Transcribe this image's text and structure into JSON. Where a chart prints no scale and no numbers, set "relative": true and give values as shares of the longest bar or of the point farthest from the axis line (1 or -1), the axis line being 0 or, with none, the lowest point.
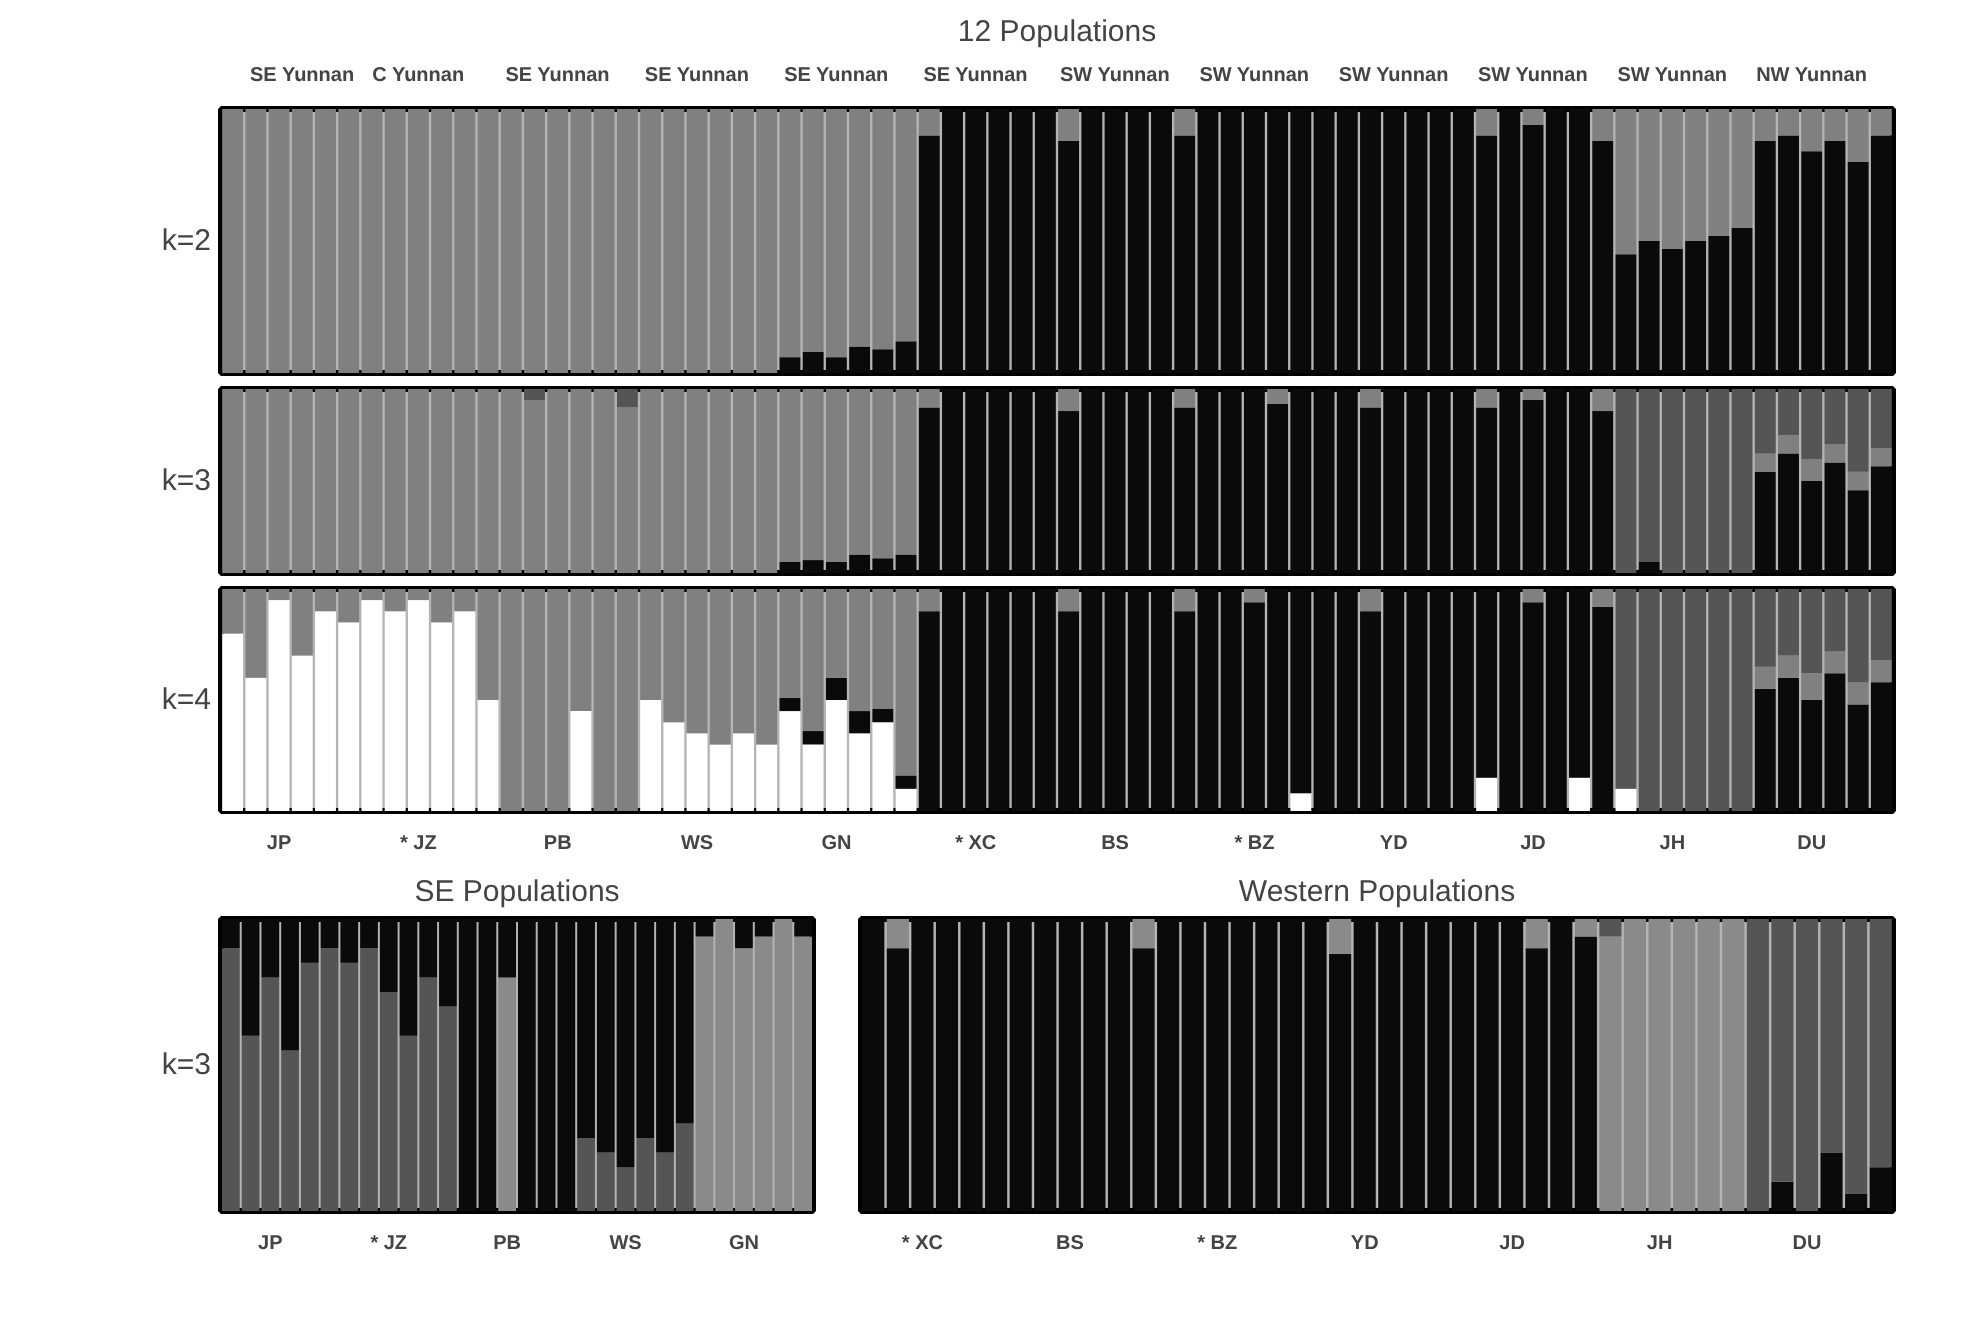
{
  "chart_data": [
    {
      "type": "bar",
      "stacked": true,
      "relative": true,
      "title": "12 Populations",
      "ylabel": "k=2",
      "categories": [
        null,
        null,
        null,
        "SE Yunnan",
        null,
        null,
        null,
        null,
        "C Yunnan",
        null,
        null,
        null,
        null,
        null,
        "SE Yunnan",
        null,
        null,
        null,
        null,
        null,
        "SE Yunnan",
        null,
        null,
        null,
        null,
        null,
        "SE Yunnan",
        null,
        null,
        null,
        null,
        null,
        "SE Yunnan",
        null,
        null,
        null,
        null,
        null,
        "SW Yunnan",
        null,
        null,
        null,
        null,
        null,
        "SW Yunnan",
        null,
        null,
        null,
        null,
        null,
        "SW Yunnan",
        null,
        null,
        null,
        null,
        null,
        "SW Yunnan",
        null,
        null,
        null,
        null,
        null,
        "SW Yunnan",
        null,
        null,
        null,
        null,
        null,
        "NW Yunnan",
        null,
        null,
        null
      ],
      "series": [
        {
          "color": "#0a0a0a",
          "values": [
            0,
            0,
            0,
            0,
            0,
            0,
            0,
            0,
            0,
            0,
            0,
            0,
            0,
            0,
            0,
            0,
            0,
            0,
            0,
            0,
            0,
            0,
            0,
            0,
            0.06,
            0.08,
            0.06,
            0.1,
            0.09,
            0.12,
            0.9,
            1,
            1,
            1,
            1,
            1,
            0.88,
            1,
            1,
            1,
            1,
            0.9,
            1,
            1,
            1,
            1,
            1,
            1,
            1,
            1,
            1,
            1,
            1,
            1,
            0.9,
            1,
            0.94,
            1,
            1,
            0.88,
            0.45,
            0.5,
            0.47,
            0.5,
            0.52,
            0.55,
            0.88,
            0.9,
            0.84,
            0.88,
            0.8,
            0.9
          ]
        },
        {
          "color": "#808080",
          "values": [
            1,
            1,
            1,
            1,
            1,
            1,
            1,
            1,
            1,
            1,
            1,
            1,
            1,
            1,
            1,
            1,
            1,
            1,
            1,
            1,
            1,
            1,
            1,
            1,
            0.94,
            0.92,
            0.94,
            0.9,
            0.91,
            0.88,
            0.1,
            0,
            0,
            0,
            0,
            0,
            0.12,
            0,
            0,
            0,
            0,
            0.1,
            0,
            0,
            0,
            0,
            0,
            0,
            0,
            0,
            0,
            0,
            0,
            0,
            0.1,
            0,
            0.06,
            0,
            0,
            0.12,
            0.55,
            0.5,
            0.53,
            0.5,
            0.48,
            0.45,
            0.12,
            0.1,
            0.16,
            0.12,
            0.2,
            0.1
          ]
        }
      ]
    },
    {
      "type": "bar",
      "stacked": true,
      "relative": true,
      "ylabel": "k=3",
      "categories": [
        null,
        null,
        null,
        null,
        null,
        null,
        null,
        null,
        null,
        null,
        null,
        null,
        null,
        null,
        null,
        null,
        null,
        null,
        null,
        null,
        null,
        null,
        null,
        null,
        null,
        null,
        null,
        null,
        null,
        null,
        null,
        null,
        null,
        null,
        null,
        null,
        null,
        null,
        null,
        null,
        null,
        null,
        null,
        null,
        null,
        null,
        null,
        null,
        null,
        null,
        null,
        null,
        null,
        null,
        null,
        null,
        null,
        null,
        null,
        null,
        null,
        null,
        null,
        null,
        null,
        null,
        null,
        null,
        null,
        null,
        null,
        null
      ],
      "series": [
        {
          "color": "#0a0a0a",
          "values": [
            0,
            0,
            0,
            0,
            0,
            0,
            0,
            0,
            0,
            0,
            0,
            0,
            0,
            0,
            0,
            0,
            0,
            0,
            0,
            0,
            0,
            0,
            0,
            0,
            0.06,
            0.07,
            0.06,
            0.1,
            0.08,
            0.1,
            0.9,
            1,
            1,
            1,
            1,
            1,
            0.88,
            1,
            1,
            1,
            1,
            0.9,
            1,
            1,
            1,
            0.92,
            1,
            1,
            1,
            0.9,
            1,
            1,
            1,
            1,
            0.9,
            1,
            0.94,
            1,
            1,
            0.88,
            0,
            0.06,
            0,
            0,
            0,
            0,
            0.55,
            0.65,
            0.5,
            0.6,
            0.45,
            0.58
          ]
        },
        {
          "color": "#808080",
          "values": [
            1,
            1,
            1,
            1,
            1,
            1,
            1,
            1,
            1,
            1,
            1,
            1,
            1,
            0.94,
            1,
            1,
            1,
            0.9,
            1,
            1,
            1,
            1,
            1,
            1,
            0.94,
            0.93,
            0.94,
            0.9,
            0.92,
            0.9,
            0.1,
            0,
            0,
            0,
            0,
            0,
            0.12,
            0,
            0,
            0,
            0,
            0.1,
            0,
            0,
            0,
            0.08,
            0,
            0,
            0,
            0.1,
            0,
            0,
            0,
            0,
            0.1,
            0,
            0.06,
            0,
            0,
            0.12,
            0,
            0,
            0,
            0,
            0,
            0,
            0.1,
            0.1,
            0.12,
            0.1,
            0.1,
            0.1
          ]
        },
        {
          "color": "#555555",
          "values": [
            0,
            0,
            0,
            0,
            0,
            0,
            0,
            0,
            0,
            0,
            0,
            0,
            0,
            0.06,
            0,
            0,
            0,
            0.1,
            0,
            0,
            0,
            0,
            0,
            0,
            0,
            0,
            0,
            0,
            0,
            0,
            0,
            0,
            0,
            0,
            0,
            0,
            0,
            0,
            0,
            0,
            0,
            0,
            0,
            0,
            0,
            0,
            0,
            0,
            0,
            0,
            0,
            0,
            0,
            0,
            0,
            0,
            0,
            0,
            0,
            0,
            1,
            0.94,
            1,
            1,
            1,
            1,
            0.35,
            0.25,
            0.38,
            0.3,
            0.45,
            0.32
          ]
        }
      ]
    },
    {
      "type": "bar",
      "stacked": true,
      "relative": true,
      "ylabel": "k=4",
      "categories": [
        null,
        null,
        "JP",
        null,
        null,
        null,
        null,
        null,
        "* JZ",
        null,
        null,
        null,
        null,
        null,
        "PB",
        null,
        null,
        null,
        null,
        null,
        "WS",
        null,
        null,
        null,
        null,
        null,
        "GN",
        null,
        null,
        null,
        null,
        null,
        "* XC",
        null,
        null,
        null,
        null,
        null,
        "BS",
        null,
        null,
        null,
        null,
        null,
        "* BZ",
        null,
        null,
        null,
        null,
        null,
        "YD",
        null,
        null,
        null,
        null,
        null,
        "JD",
        null,
        null,
        null,
        null,
        null,
        "JH",
        null,
        null,
        null,
        null,
        null,
        "DU",
        null,
        null,
        null
      ],
      "series": [
        {
          "color": "#ffffff",
          "values": [
            0.8,
            0.6,
            0.95,
            0.7,
            0.9,
            0.85,
            0.95,
            0.9,
            0.95,
            0.85,
            0.9,
            0.5,
            0,
            0,
            0,
            0.45,
            0,
            0,
            0.5,
            0.4,
            0.35,
            0.3,
            0.35,
            0.3,
            0.45,
            0.3,
            0.5,
            0.35,
            0.4,
            0.1,
            0,
            0,
            0,
            0,
            0,
            0,
            0,
            0,
            0,
            0,
            0,
            0,
            0,
            0,
            0,
            0,
            0.08,
            0,
            0,
            0,
            0,
            0,
            0,
            0,
            0.15,
            0,
            0,
            0,
            0.15,
            0,
            0.1,
            0,
            0,
            0,
            0,
            0,
            0,
            0,
            0,
            0,
            0,
            0
          ]
        },
        {
          "color": "#0a0a0a",
          "values": [
            0,
            0,
            0,
            0,
            0,
            0,
            0,
            0,
            0,
            0,
            0,
            0,
            0,
            0,
            0,
            0,
            0,
            0,
            0,
            0,
            0,
            0,
            0,
            0,
            0.06,
            0.06,
            0.1,
            0.1,
            0.06,
            0.06,
            0.9,
            1,
            1,
            1,
            1,
            1,
            0.9,
            1,
            1,
            1,
            1,
            0.9,
            1,
            1,
            0.94,
            1,
            0.92,
            1,
            1,
            0.9,
            1,
            1,
            1,
            1,
            0.85,
            1,
            0.94,
            1,
            0.85,
            0.92,
            0,
            0,
            0,
            0,
            0,
            0,
            0.55,
            0.6,
            0.5,
            0.62,
            0.48,
            0.58
          ]
        },
        {
          "color": "#808080",
          "values": [
            0.2,
            0.4,
            0.05,
            0.3,
            0.1,
            0.15,
            0.05,
            0.1,
            0.05,
            0.15,
            0.1,
            0.5,
            1,
            1,
            1,
            0.55,
            1,
            1,
            0.5,
            0.6,
            0.65,
            0.7,
            0.65,
            0.7,
            0.49,
            0.64,
            0.4,
            0.55,
            0.54,
            0.84,
            0.1,
            0,
            0,
            0,
            0,
            0,
            0.1,
            0,
            0,
            0,
            0,
            0.1,
            0,
            0,
            0.06,
            0,
            0,
            0,
            0,
            0.1,
            0,
            0,
            0,
            0,
            0,
            0,
            0.06,
            0,
            0,
            0.08,
            0,
            0,
            0,
            0,
            0,
            0,
            0.1,
            0.1,
            0.12,
            0.1,
            0.1,
            0.1
          ]
        },
        {
          "color": "#555555",
          "values": [
            0,
            0,
            0,
            0,
            0,
            0,
            0,
            0,
            0,
            0,
            0,
            0,
            0,
            0,
            0,
            0,
            0,
            0,
            0,
            0,
            0,
            0,
            0,
            0,
            0,
            0,
            0,
            0,
            0,
            0,
            0,
            0,
            0,
            0,
            0,
            0,
            0,
            0,
            0,
            0,
            0,
            0,
            0,
            0,
            0,
            0,
            0,
            0,
            0,
            0,
            0,
            0,
            0,
            0,
            0,
            0,
            0,
            0,
            0,
            0,
            0.9,
            1,
            1,
            1,
            1,
            1,
            0.35,
            0.3,
            0.38,
            0.28,
            0.42,
            0.32
          ]
        }
      ]
    },
    {
      "type": "bar",
      "stacked": true,
      "relative": true,
      "title": "SE Populations",
      "ylabel": "k=3",
      "categories": [
        null,
        null,
        "JP",
        null,
        null,
        null,
        null,
        null,
        "* JZ",
        null,
        null,
        null,
        null,
        null,
        "PB",
        null,
        null,
        null,
        null,
        null,
        "WS",
        null,
        null,
        null,
        null,
        null,
        "GN",
        null,
        null,
        null
      ],
      "series": [
        {
          "color": "#555555",
          "values": [
            0.9,
            0.6,
            0.8,
            0.55,
            0.85,
            0.9,
            0.85,
            0.9,
            0.75,
            0.6,
            0.8,
            0.7,
            0,
            0,
            0,
            0,
            0,
            0,
            0.25,
            0.2,
            0.15,
            0.25,
            0.2,
            0.3,
            0,
            0,
            0,
            0,
            0,
            0
          ]
        },
        {
          "color": "#8a8a8a",
          "values": [
            0,
            0,
            0,
            0,
            0,
            0,
            0,
            0,
            0,
            0,
            0,
            0,
            0,
            0,
            0.8,
            0,
            0,
            0,
            0,
            0,
            0,
            0,
            0,
            0,
            0.94,
            1,
            0.9,
            0.94,
            1,
            0.94
          ]
        },
        {
          "color": "#0a0a0a",
          "values": [
            0.1,
            0.4,
            0.2,
            0.45,
            0.15,
            0.1,
            0.15,
            0.1,
            0.25,
            0.4,
            0.2,
            0.3,
            1,
            1,
            0.2,
            1,
            1,
            1,
            0.75,
            0.8,
            0.85,
            0.75,
            0.8,
            0.7,
            0.06,
            0,
            0.1,
            0.06,
            0,
            0.06
          ]
        }
      ]
    },
    {
      "type": "bar",
      "stacked": true,
      "relative": true,
      "title": "Western Populations",
      "categories": [
        null,
        null,
        "* XC",
        null,
        null,
        null,
        null,
        null,
        "BS",
        null,
        null,
        null,
        null,
        null,
        "* BZ",
        null,
        null,
        null,
        null,
        null,
        "YD",
        null,
        null,
        null,
        null,
        null,
        "JD",
        null,
        null,
        null,
        null,
        null,
        "JH",
        null,
        null,
        null,
        null,
        null,
        "DU",
        null,
        null,
        null
      ],
      "series": [
        {
          "color": "#0a0a0a",
          "values": [
            1,
            0.9,
            1,
            1,
            1,
            1,
            1,
            1,
            1,
            1,
            1,
            0.9,
            1,
            1,
            1,
            1,
            1,
            1,
            1,
            0.88,
            1,
            1,
            1,
            1,
            1,
            1,
            1,
            0.9,
            1,
            0.94,
            0,
            0,
            0,
            0,
            0,
            0,
            0,
            0.1,
            0,
            0.2,
            0.06,
            0.15
          ]
        },
        {
          "color": "#8a8a8a",
          "values": [
            0,
            0.1,
            0,
            0,
            0,
            0,
            0,
            0,
            0,
            0,
            0,
            0.1,
            0,
            0,
            0,
            0,
            0,
            0,
            0,
            0.12,
            0,
            0,
            0,
            0,
            0,
            0,
            0,
            0.1,
            0,
            0.06,
            0.94,
            1,
            1,
            1,
            1,
            1,
            0,
            0,
            0,
            0,
            0,
            0
          ]
        },
        {
          "color": "#555555",
          "values": [
            0,
            0,
            0,
            0,
            0,
            0,
            0,
            0,
            0,
            0,
            0,
            0,
            0,
            0,
            0,
            0,
            0,
            0,
            0,
            0,
            0,
            0,
            0,
            0,
            0,
            0,
            0,
            0,
            0,
            0,
            0.06,
            0,
            0,
            0,
            0,
            0,
            1,
            0.9,
            1,
            0.8,
            0.94,
            0.85
          ]
        }
      ]
    }
  ]
}
